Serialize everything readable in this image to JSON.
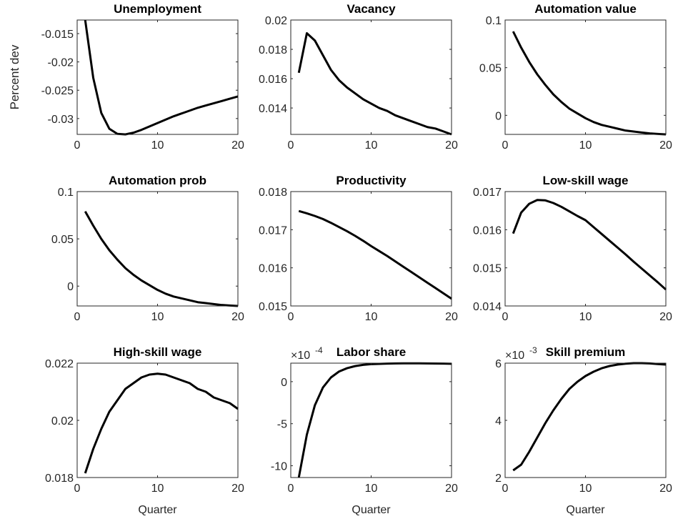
{
  "chart_data": [
    {
      "type": "line",
      "title": "Unemployment",
      "ylabel": "Percent dev",
      "color": "#000000",
      "x": [
        1,
        2,
        3,
        4,
        5,
        6,
        7,
        8,
        9,
        10,
        11,
        12,
        13,
        14,
        15,
        16,
        17,
        18,
        19,
        20
      ],
      "values": [
        -0.0126,
        -0.0228,
        -0.029,
        -0.0318,
        -0.0327,
        -0.0328,
        -0.0325,
        -0.032,
        -0.0314,
        -0.0308,
        -0.0302,
        -0.0296,
        -0.0291,
        -0.0286,
        -0.0281,
        -0.0277,
        -0.0273,
        -0.0269,
        -0.0265,
        -0.0261
      ],
      "xlim": [
        0,
        20
      ],
      "xticks": [
        0,
        10,
        20
      ],
      "ylim": [
        -0.0328,
        -0.0126
      ],
      "yticks": [
        -0.03,
        -0.025,
        -0.02,
        -0.015
      ]
    },
    {
      "type": "line",
      "title": "Vacancy",
      "color": "#000000",
      "x": [
        1,
        2,
        3,
        4,
        5,
        6,
        7,
        8,
        9,
        10,
        11,
        12,
        13,
        14,
        15,
        16,
        17,
        18,
        19,
        20
      ],
      "values": [
        0.0164,
        0.0191,
        0.0186,
        0.0176,
        0.0166,
        0.0159,
        0.0154,
        0.015,
        0.0146,
        0.0143,
        0.014,
        0.0138,
        0.0135,
        0.0133,
        0.0131,
        0.0129,
        0.0127,
        0.0126,
        0.0124,
        0.0122
      ],
      "xlim": [
        0,
        20
      ],
      "xticks": [
        0,
        10,
        20
      ],
      "ylim": [
        0.0122,
        0.02
      ],
      "yticks": [
        0.014,
        0.016,
        0.018,
        0.02
      ]
    },
    {
      "type": "line",
      "title": "Automation value",
      "color": "#000000",
      "x": [
        1,
        2,
        3,
        4,
        5,
        6,
        7,
        8,
        9,
        10,
        11,
        12,
        13,
        14,
        15,
        16,
        17,
        18,
        19,
        20
      ],
      "values": [
        0.088,
        0.071,
        0.056,
        0.043,
        0.032,
        0.022,
        0.014,
        0.007,
        0.002,
        -0.003,
        -0.007,
        -0.01,
        -0.012,
        -0.014,
        -0.016,
        -0.017,
        -0.018,
        -0.019,
        -0.0195,
        -0.02
      ],
      "xlim": [
        0,
        20
      ],
      "xticks": [
        0,
        10,
        20
      ],
      "ylim": [
        -0.02,
        0.1
      ],
      "yticks": [
        0,
        0.05,
        0.1
      ]
    },
    {
      "type": "line",
      "title": "Automation prob",
      "color": "#000000",
      "x": [
        1,
        2,
        3,
        4,
        5,
        6,
        7,
        8,
        9,
        10,
        11,
        12,
        13,
        14,
        15,
        16,
        17,
        18,
        19,
        20
      ],
      "values": [
        0.079,
        0.064,
        0.05,
        0.038,
        0.028,
        0.019,
        0.012,
        0.006,
        0.001,
        -0.004,
        -0.008,
        -0.011,
        -0.013,
        -0.015,
        -0.017,
        -0.018,
        -0.019,
        -0.02,
        -0.0205,
        -0.021
      ],
      "xlim": [
        0,
        20
      ],
      "xticks": [
        0,
        10,
        20
      ],
      "ylim": [
        -0.021,
        0.1
      ],
      "yticks": [
        0,
        0.05,
        0.1
      ]
    },
    {
      "type": "line",
      "title": "Productivity",
      "color": "#000000",
      "x": [
        1,
        2,
        3,
        4,
        5,
        6,
        7,
        8,
        9,
        10,
        11,
        12,
        13,
        14,
        15,
        16,
        17,
        18,
        19,
        20
      ],
      "values": [
        0.01749,
        0.01743,
        0.01736,
        0.01728,
        0.01718,
        0.01707,
        0.01696,
        0.01684,
        0.01671,
        0.01657,
        0.01644,
        0.01631,
        0.01617,
        0.01603,
        0.01589,
        0.01575,
        0.01561,
        0.01547,
        0.01533,
        0.01519
      ],
      "xlim": [
        0,
        20
      ],
      "xticks": [
        0,
        10,
        20
      ],
      "ylim": [
        0.015,
        0.018
      ],
      "yticks": [
        0.015,
        0.016,
        0.017,
        0.018
      ]
    },
    {
      "type": "line",
      "title": "Low-skill wage",
      "color": "#000000",
      "x": [
        1,
        2,
        3,
        4,
        5,
        6,
        7,
        8,
        9,
        10,
        11,
        12,
        13,
        14,
        15,
        16,
        17,
        18,
        19,
        20
      ],
      "values": [
        0.0159,
        0.01645,
        0.01668,
        0.01678,
        0.01677,
        0.0167,
        0.0166,
        0.01648,
        0.01636,
        0.01625,
        0.01607,
        0.01589,
        0.01571,
        0.01553,
        0.01535,
        0.01516,
        0.01498,
        0.0148,
        0.01462,
        0.01443
      ],
      "xlim": [
        0,
        20
      ],
      "xticks": [
        0,
        10,
        20
      ],
      "ylim": [
        0.014,
        0.017
      ],
      "yticks": [
        0.014,
        0.015,
        0.016,
        0.017
      ]
    },
    {
      "type": "line",
      "title": "High-skill wage",
      "xlabel": "Quarter",
      "color": "#000000",
      "x": [
        1,
        2,
        3,
        4,
        5,
        6,
        7,
        8,
        9,
        10,
        11,
        12,
        13,
        14,
        15,
        16,
        17,
        18,
        19,
        20
      ],
      "values": [
        0.01815,
        0.019,
        0.0197,
        0.0203,
        0.0207,
        0.0211,
        0.0213,
        0.0215,
        0.0216,
        0.02163,
        0.0216,
        0.0215,
        0.0214,
        0.0213,
        0.0211,
        0.021,
        0.0208,
        0.0207,
        0.0206,
        0.0204
      ],
      "xlim": [
        0,
        20
      ],
      "xticks": [
        0,
        10,
        20
      ],
      "ylim": [
        0.018,
        0.022
      ],
      "yticks": [
        0.018,
        0.02,
        0.022
      ]
    },
    {
      "type": "line",
      "title": "Labor share",
      "xlabel": "Quarter",
      "color": "#000000",
      "y_multiplier": {
        "base": "×10",
        "exponent": "-4"
      },
      "x": [
        1,
        2,
        3,
        4,
        5,
        6,
        7,
        8,
        9,
        10,
        11,
        12,
        13,
        14,
        15,
        16,
        17,
        18,
        19,
        20
      ],
      "values": [
        -11.4,
        -6.3,
        -2.8,
        -0.7,
        0.5,
        1.2,
        1.6,
        1.85,
        2.0,
        2.08,
        2.12,
        2.15,
        2.17,
        2.18,
        2.18,
        2.18,
        2.17,
        2.16,
        2.15,
        2.13
      ],
      "xlim": [
        0,
        20
      ],
      "xticks": [
        0,
        10,
        20
      ],
      "ylim": [
        -11.4,
        2.2
      ],
      "yticks": [
        -10,
        -5,
        0
      ]
    },
    {
      "type": "line",
      "title": "Skill premium",
      "xlabel": "Quarter",
      "color": "#000000",
      "y_multiplier": {
        "base": "×10",
        "exponent": "-3"
      },
      "x": [
        1,
        2,
        3,
        4,
        5,
        6,
        7,
        8,
        9,
        10,
        11,
        12,
        13,
        14,
        15,
        16,
        17,
        18,
        19,
        20
      ],
      "values": [
        2.25,
        2.45,
        2.9,
        3.4,
        3.9,
        4.35,
        4.75,
        5.1,
        5.35,
        5.55,
        5.7,
        5.82,
        5.9,
        5.95,
        5.98,
        6.0,
        6.0,
        5.99,
        5.97,
        5.95
      ],
      "xlim": [
        0,
        20
      ],
      "xticks": [
        0,
        10,
        20
      ],
      "ylim": [
        2,
        6
      ],
      "yticks": [
        2,
        4,
        6
      ]
    }
  ]
}
